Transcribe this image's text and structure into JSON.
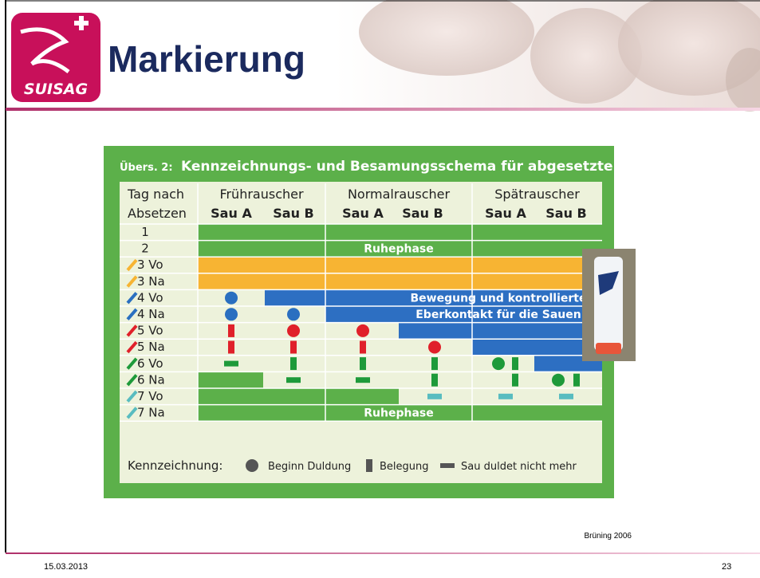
{
  "header": {
    "title": "Markierung",
    "logo": "SUISAG"
  },
  "figure": {
    "label": "Übers. 2:",
    "title": "Kennzeichnungs- und Besamungsschema für abgesetzte Sauen",
    "row_header": [
      "Tag nach",
      "Absetzen"
    ],
    "groups": [
      {
        "name": "Frührauscher",
        "cols": [
          "Sau A",
          "Sau B"
        ]
      },
      {
        "name": "Normalrauscher",
        "cols": [
          "Sau A",
          "Sau B"
        ]
      },
      {
        "name": "Spätrauscher",
        "cols": [
          "Sau A",
          "Sau B"
        ]
      }
    ],
    "rows": [
      "1",
      "2",
      "3 Vo",
      "3 Na",
      "4 Vo",
      "4 Na",
      "5 Vo",
      "5 Na",
      "6 Vo",
      "6 Na",
      "7 Vo",
      "7 Na"
    ],
    "phases": [
      "Ruhephase",
      "Ruhephase"
    ],
    "blue_note": [
      "Bewegung und kontrollierte",
      "Eberkontakt für die Sauen"
    ],
    "legend": {
      "title": "Kennzeichnung:",
      "items": [
        "Beginn Duldung",
        "Belegung",
        "Sau duldet nicht mehr"
      ]
    }
  },
  "source": "Brüning 2006",
  "footer": {
    "date": "15.03.2013",
    "page": "23"
  }
}
